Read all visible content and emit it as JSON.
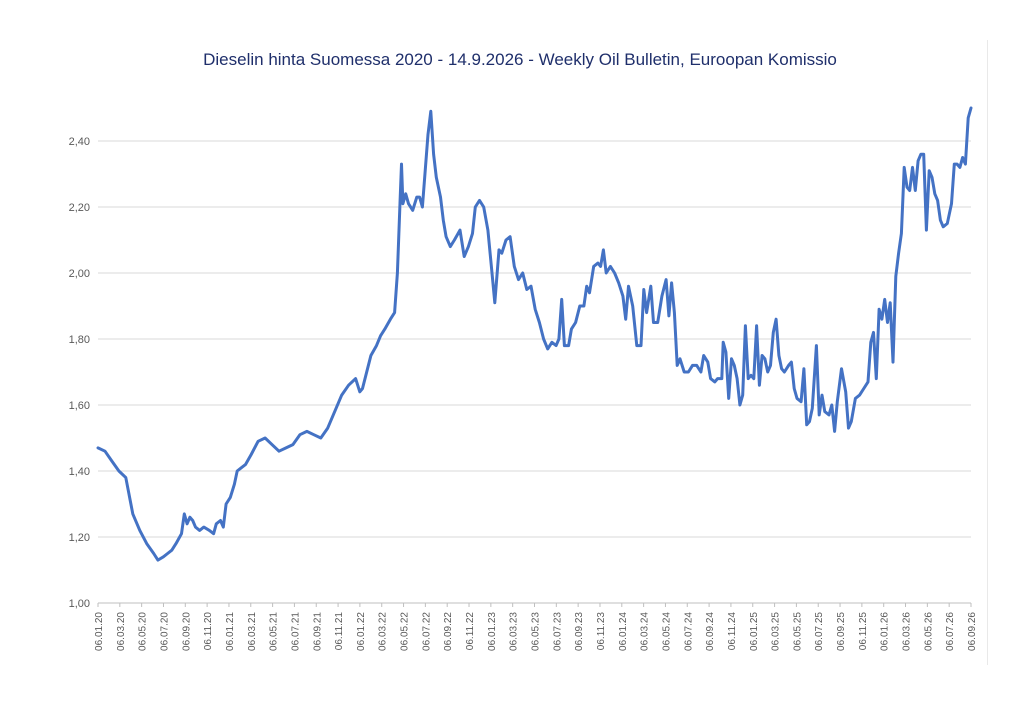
{
  "chart_data": {
    "type": "line",
    "title": "Dieselin hinta Suomessa 2020 - 14.9.2026 - Weekly Oil Bulletin, Euroopan Komissio",
    "xlabel": "",
    "ylabel": "",
    "ylim": [
      1.0,
      2.5
    ],
    "yticks": [
      "1,00",
      "1,20",
      "1,40",
      "1,60",
      "1,80",
      "2,00",
      "2,20",
      "2,40"
    ],
    "xticks": [
      "06.01.20",
      "06.03.20",
      "06.05.20",
      "06.07.20",
      "06.09.20",
      "06.11.20",
      "06.01.21",
      "06.03.21",
      "06.05.21",
      "06.07.21",
      "06.09.21",
      "06.11.21",
      "06.01.22",
      "06.03.22",
      "06.05.22",
      "06.07.22",
      "06.09.22",
      "06.11.22",
      "06.01.23",
      "06.03.23",
      "06.05.23",
      "06.07.23",
      "06.09.23",
      "06.11.23",
      "06.01.24",
      "06.03.24",
      "06.05.24",
      "06.07.24",
      "06.09.24",
      "06.11.24",
      "06.01.25",
      "06.03.25",
      "06.05.25",
      "06.07.25",
      "06.09.25",
      "06.11.25",
      "06.01.26",
      "06.03.26",
      "06.05.26",
      "06.07.26",
      "06.09.26"
    ],
    "grid": true,
    "legend": "none",
    "line_color": "#4472c4",
    "series": [
      {
        "points": [
          [
            0,
            1.47
          ],
          [
            0.5,
            1.46
          ],
          [
            1,
            1.43
          ],
          [
            1.5,
            1.4
          ],
          [
            2,
            1.38
          ],
          [
            2.5,
            1.27
          ],
          [
            3,
            1.22
          ],
          [
            3.5,
            1.18
          ],
          [
            4,
            1.15
          ],
          [
            4.3,
            1.13
          ],
          [
            4.7,
            1.14
          ],
          [
            5,
            1.15
          ],
          [
            5.3,
            1.16
          ],
          [
            5.6,
            1.18
          ],
          [
            6,
            1.21
          ],
          [
            6.2,
            1.27
          ],
          [
            6.4,
            1.24
          ],
          [
            6.6,
            1.26
          ],
          [
            6.8,
            1.25
          ],
          [
            7,
            1.23
          ],
          [
            7.3,
            1.22
          ],
          [
            7.6,
            1.23
          ],
          [
            8,
            1.22
          ],
          [
            8.3,
            1.21
          ],
          [
            8.5,
            1.24
          ],
          [
            8.8,
            1.25
          ],
          [
            9,
            1.23
          ],
          [
            9.2,
            1.3
          ],
          [
            9.5,
            1.32
          ],
          [
            9.8,
            1.36
          ],
          [
            10,
            1.4
          ],
          [
            10.3,
            1.41
          ],
          [
            10.6,
            1.42
          ],
          [
            11,
            1.45
          ],
          [
            11.5,
            1.49
          ],
          [
            12,
            1.5
          ],
          [
            12.5,
            1.48
          ],
          [
            13,
            1.46
          ],
          [
            13.5,
            1.47
          ],
          [
            14,
            1.48
          ],
          [
            14.5,
            1.51
          ],
          [
            15,
            1.52
          ],
          [
            15.5,
            1.51
          ],
          [
            16,
            1.5
          ],
          [
            16.5,
            1.53
          ],
          [
            17,
            1.58
          ],
          [
            17.5,
            1.63
          ],
          [
            18,
            1.66
          ],
          [
            18.5,
            1.68
          ],
          [
            18.8,
            1.64
          ],
          [
            19,
            1.65
          ],
          [
            19.3,
            1.7
          ],
          [
            19.6,
            1.75
          ],
          [
            20,
            1.78
          ],
          [
            20.3,
            1.81
          ],
          [
            20.6,
            1.83
          ],
          [
            21,
            1.86
          ],
          [
            21.3,
            1.88
          ],
          [
            21.5,
            2.0
          ],
          [
            21.7,
            2.22
          ],
          [
            21.8,
            2.33
          ],
          [
            21.9,
            2.21
          ],
          [
            22.1,
            2.24
          ],
          [
            22.3,
            2.21
          ],
          [
            22.6,
            2.19
          ],
          [
            22.9,
            2.23
          ],
          [
            23.1,
            2.23
          ],
          [
            23.3,
            2.2
          ],
          [
            23.5,
            2.31
          ],
          [
            23.7,
            2.42
          ],
          [
            23.9,
            2.49
          ],
          [
            24.1,
            2.36
          ],
          [
            24.3,
            2.29
          ],
          [
            24.6,
            2.23
          ],
          [
            24.8,
            2.16
          ],
          [
            25,
            2.11
          ],
          [
            25.3,
            2.08
          ],
          [
            25.6,
            2.1
          ],
          [
            26,
            2.13
          ],
          [
            26.3,
            2.05
          ],
          [
            26.6,
            2.08
          ],
          [
            26.9,
            2.12
          ],
          [
            27.1,
            2.2
          ],
          [
            27.4,
            2.22
          ],
          [
            27.7,
            2.2
          ],
          [
            28,
            2.13
          ],
          [
            28.3,
            2.0
          ],
          [
            28.5,
            1.91
          ],
          [
            28.8,
            2.07
          ],
          [
            29,
            2.06
          ],
          [
            29.3,
            2.1
          ],
          [
            29.6,
            2.11
          ],
          [
            29.9,
            2.02
          ],
          [
            30.2,
            1.98
          ],
          [
            30.5,
            2.0
          ],
          [
            30.8,
            1.95
          ],
          [
            31.1,
            1.96
          ],
          [
            31.4,
            1.89
          ],
          [
            31.7,
            1.85
          ],
          [
            32,
            1.8
          ],
          [
            32.3,
            1.77
          ],
          [
            32.6,
            1.79
          ],
          [
            32.9,
            1.78
          ],
          [
            33.1,
            1.8
          ],
          [
            33.3,
            1.92
          ],
          [
            33.5,
            1.78
          ],
          [
            33.8,
            1.78
          ],
          [
            34,
            1.83
          ],
          [
            34.3,
            1.85
          ],
          [
            34.6,
            1.9
          ],
          [
            34.9,
            1.9
          ],
          [
            35.1,
            1.96
          ],
          [
            35.3,
            1.94
          ],
          [
            35.6,
            2.02
          ],
          [
            35.9,
            2.03
          ],
          [
            36.1,
            2.02
          ],
          [
            36.3,
            2.07
          ],
          [
            36.5,
            2.0
          ],
          [
            36.8,
            2.02
          ],
          [
            37.1,
            2.0
          ],
          [
            37.4,
            1.97
          ],
          [
            37.7,
            1.93
          ],
          [
            37.9,
            1.86
          ],
          [
            38.1,
            1.96
          ],
          [
            38.4,
            1.9
          ],
          [
            38.7,
            1.78
          ],
          [
            39,
            1.78
          ],
          [
            39.2,
            1.95
          ],
          [
            39.4,
            1.88
          ],
          [
            39.7,
            1.96
          ],
          [
            39.9,
            1.85
          ],
          [
            40.2,
            1.85
          ],
          [
            40.5,
            1.93
          ],
          [
            40.8,
            1.98
          ],
          [
            41,
            1.87
          ],
          [
            41.2,
            1.97
          ],
          [
            41.4,
            1.88
          ],
          [
            41.6,
            1.72
          ],
          [
            41.8,
            1.74
          ],
          [
            42.1,
            1.7
          ],
          [
            42.4,
            1.7
          ],
          [
            42.7,
            1.72
          ],
          [
            43,
            1.72
          ],
          [
            43.3,
            1.7
          ],
          [
            43.5,
            1.75
          ],
          [
            43.8,
            1.73
          ],
          [
            44,
            1.68
          ],
          [
            44.3,
            1.67
          ],
          [
            44.5,
            1.68
          ],
          [
            44.8,
            1.68
          ],
          [
            44.9,
            1.79
          ],
          [
            45.1,
            1.76
          ],
          [
            45.3,
            1.62
          ],
          [
            45.5,
            1.74
          ],
          [
            45.7,
            1.72
          ],
          [
            45.9,
            1.68
          ],
          [
            46.1,
            1.6
          ],
          [
            46.3,
            1.63
          ],
          [
            46.5,
            1.84
          ],
          [
            46.7,
            1.68
          ],
          [
            46.9,
            1.69
          ],
          [
            47.1,
            1.68
          ],
          [
            47.3,
            1.84
          ],
          [
            47.5,
            1.66
          ],
          [
            47.7,
            1.75
          ],
          [
            47.9,
            1.74
          ],
          [
            48.1,
            1.7
          ],
          [
            48.3,
            1.72
          ],
          [
            48.5,
            1.82
          ],
          [
            48.7,
            1.86
          ],
          [
            48.9,
            1.75
          ],
          [
            49.1,
            1.71
          ],
          [
            49.3,
            1.7
          ],
          [
            49.6,
            1.72
          ],
          [
            49.8,
            1.73
          ],
          [
            50,
            1.65
          ],
          [
            50.2,
            1.62
          ],
          [
            50.5,
            1.61
          ],
          [
            50.7,
            1.71
          ],
          [
            50.9,
            1.54
          ],
          [
            51.1,
            1.55
          ],
          [
            51.3,
            1.59
          ],
          [
            51.6,
            1.78
          ],
          [
            51.8,
            1.57
          ],
          [
            52,
            1.63
          ],
          [
            52.2,
            1.58
          ],
          [
            52.5,
            1.57
          ],
          [
            52.7,
            1.6
          ],
          [
            52.9,
            1.52
          ],
          [
            53.1,
            1.61
          ],
          [
            53.4,
            1.71
          ],
          [
            53.7,
            1.64
          ],
          [
            53.9,
            1.53
          ],
          [
            54.1,
            1.55
          ],
          [
            54.4,
            1.62
          ],
          [
            54.7,
            1.63
          ],
          [
            55,
            1.65
          ],
          [
            55.3,
            1.67
          ],
          [
            55.5,
            1.79
          ],
          [
            55.7,
            1.82
          ],
          [
            55.9,
            1.68
          ],
          [
            56.1,
            1.89
          ],
          [
            56.3,
            1.86
          ],
          [
            56.5,
            1.92
          ],
          [
            56.7,
            1.85
          ],
          [
            56.9,
            1.91
          ],
          [
            57.1,
            1.73
          ],
          [
            57.3,
            1.99
          ],
          [
            57.5,
            2.06
          ],
          [
            57.7,
            2.12
          ],
          [
            57.9,
            2.32
          ],
          [
            58.1,
            2.26
          ],
          [
            58.3,
            2.25
          ],
          [
            58.5,
            2.32
          ],
          [
            58.7,
            2.25
          ],
          [
            58.9,
            2.34
          ],
          [
            59.1,
            2.36
          ],
          [
            59.3,
            2.36
          ],
          [
            59.5,
            2.13
          ],
          [
            59.7,
            2.31
          ],
          [
            59.9,
            2.29
          ],
          [
            60.1,
            2.24
          ],
          [
            60.3,
            2.22
          ],
          [
            60.5,
            2.16
          ],
          [
            60.7,
            2.14
          ],
          [
            61,
            2.15
          ],
          [
            61.3,
            2.21
          ],
          [
            61.5,
            2.33
          ],
          [
            61.7,
            2.33
          ],
          [
            61.9,
            2.32
          ],
          [
            62.1,
            2.35
          ],
          [
            62.3,
            2.33
          ],
          [
            62.5,
            2.47
          ],
          [
            62.7,
            2.5
          ]
        ]
      }
    ]
  }
}
